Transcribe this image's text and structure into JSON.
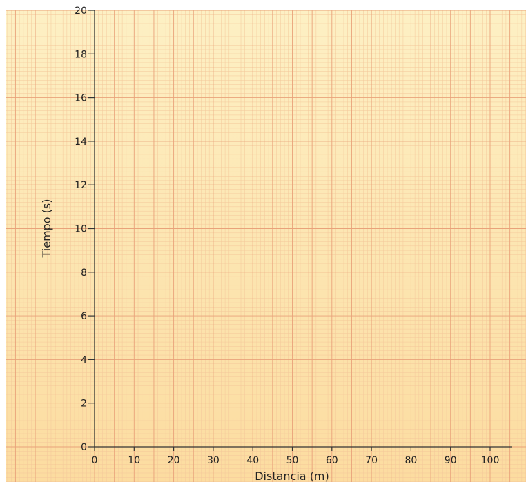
{
  "chart_data": {
    "type": "scatter",
    "title": "",
    "xlabel": "Distancia (m)",
    "ylabel": "Tiempo (s)",
    "xlim": [
      0,
      100
    ],
    "ylim": [
      0,
      20
    ],
    "x_ticks": [
      0,
      10,
      20,
      30,
      40,
      50,
      60,
      70,
      80,
      90,
      100
    ],
    "y_ticks": [
      0,
      2,
      4,
      6,
      8,
      10,
      12,
      14,
      16,
      18,
      20
    ],
    "series": [],
    "grid": true,
    "grid_style": "graph-paper",
    "legend": "none"
  },
  "colors": {
    "background_top": "#fdf0c4",
    "background_bottom": "#fcdca0",
    "grid_minor": "#f4c79a",
    "grid_major": "#e9a27a",
    "axis": "#333333"
  }
}
